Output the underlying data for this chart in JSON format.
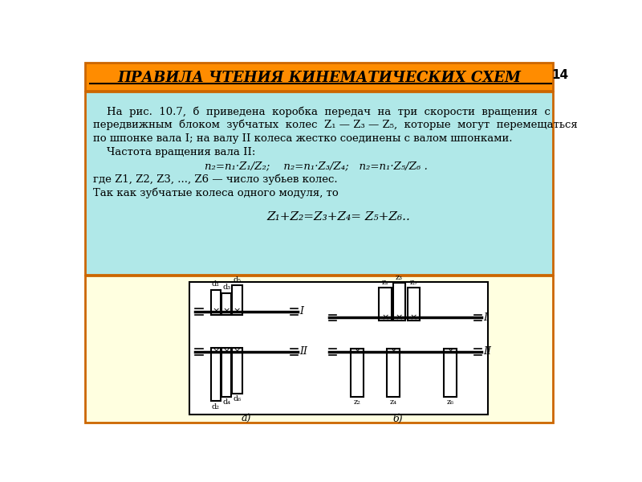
{
  "title": "ПРАВИЛА ЧТЕНИЯ КИНЕМАТИЧЕСКИХ СХЕМ",
  "title_bg": "#FF8C00",
  "title_text_color": "#000000",
  "text_bg": "#B0E8E8",
  "diagram_bg": "#FFFFE0",
  "page_num": "14",
  "border_color": "#CC6600",
  "line1": "    На  рис.  10.7,  б  приведена  коробка  передач  на  три  скорости  вращения  с",
  "line2": "передвижным  блоком  зубчатых  колес  Z₁ — Z₃ — Z₅,  которые  могут  перемещаться",
  "line3": "по шпонке вала I; на валу II колеса жестко соединены с валом шпонками.",
  "line4": "    Частота вращения вала II:",
  "line5": "n₂=n₁·Z₁/Z₂;    n₂=n₁·Z₃/Z₄;   n₂=n₁·Z₅/Z₆ .",
  "line6": "где Z1, Z2, Z3, ..., Z6 — число зубьев колес.",
  "line7": "Так как зубчатые колеса одного модуля, то",
  "line8": "Z₁+Z₂=Z₃+Z₄= Z₅+Z₆..",
  "label_a": "а)",
  "label_b": "б)",
  "label_I": "I",
  "label_II": "II"
}
